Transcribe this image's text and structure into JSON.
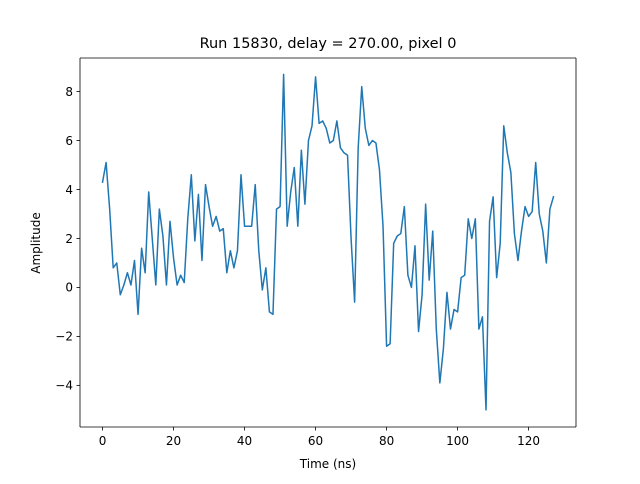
{
  "chart_data": {
    "type": "line",
    "title": "Run 15830, delay = 270.00, pixel 0",
    "xlabel": "Time (ns)",
    "ylabel": "Amplitude",
    "xlim": [
      -6.35,
      133.35
    ],
    "ylim": [
      -5.7,
      9.37
    ],
    "xticks": [
      0,
      20,
      40,
      60,
      80,
      100,
      120
    ],
    "yticks": [
      -4,
      -2,
      0,
      2,
      4,
      6,
      8
    ],
    "grid": false,
    "legend": "none",
    "series": [
      {
        "color": "#1f77b4",
        "x": [
          0,
          1,
          2,
          3,
          4,
          5,
          6,
          7,
          8,
          9,
          10,
          11,
          12,
          13,
          14,
          15,
          16,
          17,
          18,
          19,
          20,
          21,
          22,
          23,
          24,
          25,
          26,
          27,
          28,
          29,
          30,
          31,
          32,
          33,
          34,
          35,
          36,
          37,
          38,
          39,
          40,
          41,
          42,
          43,
          44,
          45,
          46,
          47,
          48,
          49,
          50,
          51,
          52,
          53,
          54,
          55,
          56,
          57,
          58,
          59,
          60,
          61,
          62,
          63,
          64,
          65,
          66,
          67,
          68,
          69,
          70,
          71,
          72,
          73,
          74,
          75,
          76,
          77,
          78,
          79,
          80,
          81,
          82,
          83,
          84,
          85,
          86,
          87,
          88,
          89,
          90,
          91,
          92,
          93,
          94,
          95,
          96,
          97,
          98,
          99,
          100,
          101,
          102,
          103,
          104,
          105,
          106,
          107,
          108,
          109,
          110,
          111,
          112,
          113,
          114,
          115,
          116,
          117,
          118,
          119,
          120,
          121,
          122,
          123,
          124,
          125,
          126,
          127
        ],
        "y": [
          4.3,
          5.1,
          3.2,
          0.8,
          1.0,
          -0.3,
          0.1,
          0.6,
          0.1,
          1.1,
          -1.1,
          1.6,
          0.6,
          3.9,
          2.0,
          0.1,
          3.2,
          2.1,
          0.1,
          2.7,
          1.2,
          0.1,
          0.5,
          0.2,
          2.8,
          4.6,
          1.9,
          3.8,
          1.1,
          4.2,
          3.3,
          2.5,
          2.9,
          2.3,
          2.4,
          0.6,
          1.5,
          0.8,
          1.5,
          4.6,
          2.5,
          2.5,
          2.5,
          4.2,
          1.5,
          -0.1,
          0.8,
          -1.0,
          -1.1,
          3.2,
          3.3,
          8.7,
          2.5,
          3.9,
          4.9,
          2.5,
          5.6,
          3.4,
          6.0,
          6.6,
          8.6,
          6.7,
          6.8,
          6.5,
          5.9,
          6.0,
          6.8,
          5.7,
          5.5,
          5.4,
          2.0,
          -0.6,
          5.7,
          8.2,
          6.5,
          5.8,
          6.0,
          5.9,
          4.8,
          2.5,
          -2.4,
          -2.3,
          1.8,
          2.1,
          2.2,
          3.3,
          0.5,
          0.0,
          1.7,
          -1.8,
          -0.3,
          3.4,
          0.3,
          2.3,
          -1.7,
          -3.9,
          -2.5,
          -0.2,
          -1.7,
          -0.9,
          -1.0,
          0.4,
          0.5,
          2.8,
          2.0,
          2.8,
          -1.7,
          -1.2,
          -5.0,
          2.7,
          3.7,
          0.4,
          1.8,
          6.6,
          5.5,
          4.7,
          2.2,
          1.1,
          2.3,
          3.3,
          2.9,
          3.1,
          5.1,
          3.0,
          2.3,
          1.0,
          3.2,
          3.7
        ]
      }
    ]
  }
}
